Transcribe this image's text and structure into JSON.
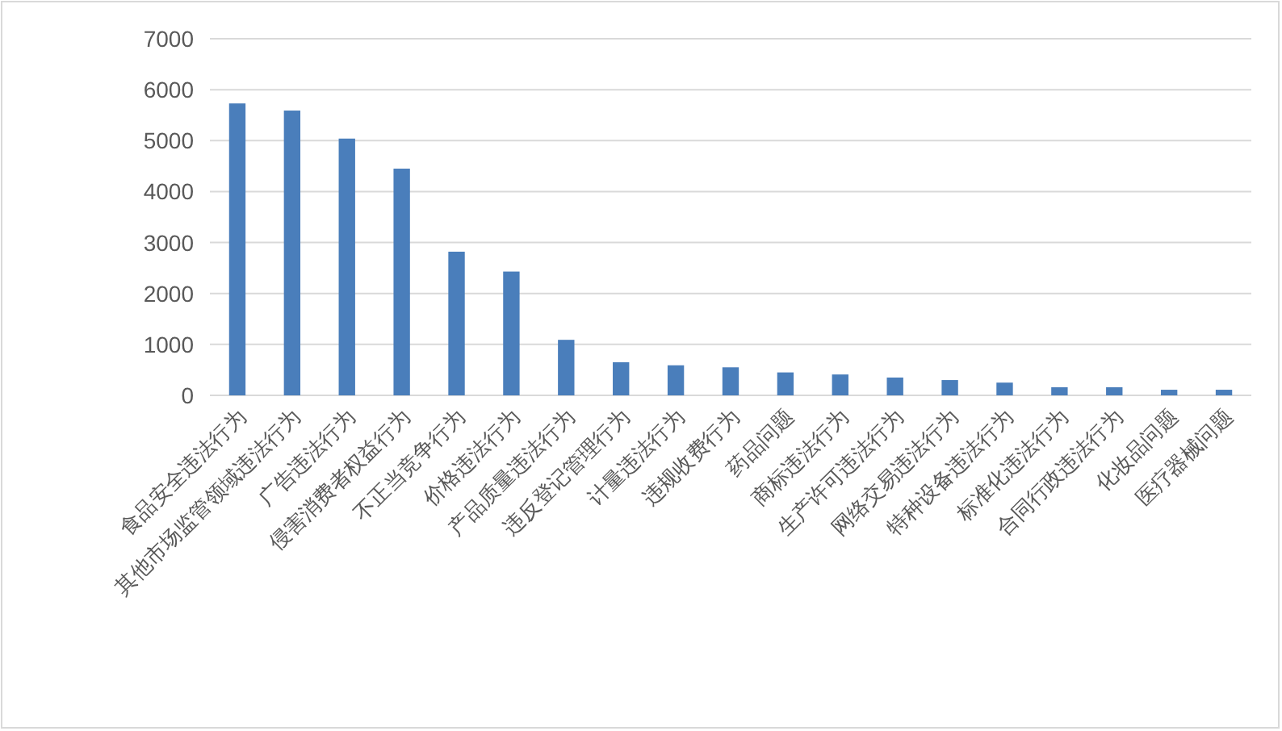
{
  "chart_data": {
    "type": "bar",
    "categories": [
      "食品安全违法行为",
      "其他市场监管领域违法行为",
      "广告违法行为",
      "侵害消费者权益行为",
      "不正当竞争行为",
      "价格违法行为",
      "产品质量违法行为",
      "违反登记管理行为",
      "计量违法行为",
      "违规收费行为",
      "药品问题",
      "商标违法行为",
      "生产许可违法行为",
      "网络交易违法行为",
      "特种设备违法行为",
      "标准化违法行为",
      "合同行政违法行为",
      "化妆品问题",
      "医疗器械问题"
    ],
    "values": [
      5730,
      5590,
      5040,
      4450,
      2820,
      2430,
      1090,
      650,
      590,
      550,
      450,
      410,
      350,
      300,
      250,
      160,
      160,
      110,
      110
    ],
    "color": "#4a7ebb",
    "ylim": [
      0,
      7000
    ],
    "yticks": [
      0,
      1000,
      2000,
      3000,
      4000,
      5000,
      6000,
      7000
    ],
    "grid": "y"
  }
}
